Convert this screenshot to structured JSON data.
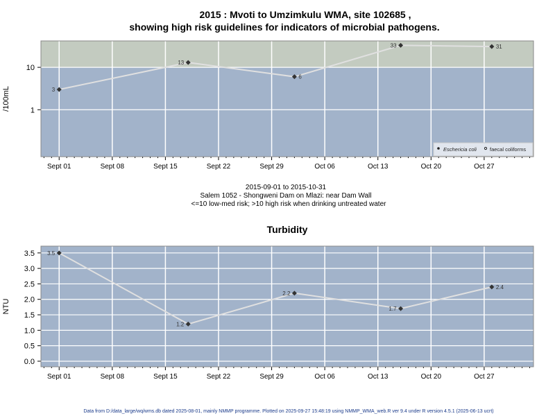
{
  "chart_data": [
    {
      "type": "line",
      "title_line1": "2015 : Mvoti to Umzimkulu WMA, site 102685 ,",
      "title_line2": "showing high risk guidelines for indicators of microbial pathogens.",
      "ylabel": "/100mL",
      "yscale": "log",
      "ylim": [
        0.078,
        42
      ],
      "yticks": [
        {
          "v": 1,
          "label": "1"
        },
        {
          "v": 10,
          "label": "10"
        }
      ],
      "xlim_days_from_sept01": [
        -2.4,
        62.5
      ],
      "xticks": [
        {
          "d": 0,
          "label": "Sept 01"
        },
        {
          "d": 7,
          "label": "Sept 08"
        },
        {
          "d": 14,
          "label": "Sept 15"
        },
        {
          "d": 21,
          "label": "Sept 22"
        },
        {
          "d": 28,
          "label": "Sept 29"
        },
        {
          "d": 35,
          "label": "Oct 06"
        },
        {
          "d": 42,
          "label": "Oct 13"
        },
        {
          "d": 49,
          "label": "Oct 20"
        },
        {
          "d": 56,
          "label": "Oct 27"
        }
      ],
      "high_risk_threshold": 10,
      "series": [
        {
          "name": "Eschericia coli",
          "points": [
            {
              "date": "2015-09-01",
              "d": 0,
              "y": 3,
              "label": "3",
              "side": "left"
            },
            {
              "date": "2015-09-18",
              "d": 17,
              "y": 13,
              "label": "13",
              "side": "left"
            },
            {
              "date": "2015-10-02",
              "d": 31,
              "y": 6,
              "label": "6",
              "side": "right"
            },
            {
              "date": "2015-10-16",
              "d": 45,
              "y": 33,
              "label": "33",
              "side": "left"
            },
            {
              "date": "2015-10-28",
              "d": 57,
              "y": 31,
              "label": "31",
              "side": "right"
            }
          ]
        }
      ],
      "legend": [
        {
          "label": "Eschericia coli",
          "marker": "filled"
        },
        {
          "label": "faecal coliforms",
          "marker": "open"
        }
      ],
      "legend_position": "bottom-right",
      "colors": {
        "low_band": "#a2b3ca",
        "high_band": "#c3cbc0",
        "line": "#e0e0e0",
        "point": "#333333"
      }
    },
    {
      "type": "line",
      "title": "Turbidity",
      "ylabel": "NTU",
      "ylim": [
        -0.18,
        3.72
      ],
      "yticks": [
        {
          "v": 0,
          "label": "0.0"
        },
        {
          "v": 0.5,
          "label": "0.5"
        },
        {
          "v": 1,
          "label": "1.0"
        },
        {
          "v": 1.5,
          "label": "1.5"
        },
        {
          "v": 2,
          "label": "2.0"
        },
        {
          "v": 2.5,
          "label": "2.5"
        },
        {
          "v": 3,
          "label": "3.0"
        },
        {
          "v": 3.5,
          "label": "3.5"
        }
      ],
      "xlim_days_from_sept01": [
        -2.4,
        62.5
      ],
      "xticks": [
        {
          "d": 0,
          "label": "Sept 01"
        },
        {
          "d": 7,
          "label": "Sept 08"
        },
        {
          "d": 14,
          "label": "Sept 15"
        },
        {
          "d": 21,
          "label": "Sept 22"
        },
        {
          "d": 28,
          "label": "Sept 29"
        },
        {
          "d": 35,
          "label": "Oct 06"
        },
        {
          "d": 42,
          "label": "Oct 13"
        },
        {
          "d": 49,
          "label": "Oct 20"
        },
        {
          "d": 56,
          "label": "Oct 27"
        }
      ],
      "series": [
        {
          "name": "Turbidity",
          "points": [
            {
              "date": "2015-09-01",
              "d": 0,
              "y": 3.5,
              "label": "3.5",
              "side": "left"
            },
            {
              "date": "2015-09-18",
              "d": 17,
              "y": 1.2,
              "label": "1.2",
              "side": "left"
            },
            {
              "date": "2015-10-02",
              "d": 31,
              "y": 2.2,
              "label": "2.2",
              "side": "left"
            },
            {
              "date": "2015-10-16",
              "d": 45,
              "y": 1.7,
              "label": "1.7",
              "side": "left"
            },
            {
              "date": "2015-10-28",
              "d": 57,
              "y": 2.4,
              "label": "2.4",
              "side": "right"
            }
          ]
        }
      ],
      "colors": {
        "band": "#a2b3ca",
        "line": "#e0e0e0",
        "point": "#333333"
      }
    }
  ],
  "subtitle": {
    "date_range": "2015-09-01 to 2015-10-31",
    "site": "Salem 1052 - Shongweni Dam on Mlazi: near Dam Wall",
    "risk_note": "<=10 low-med risk; >10 high risk when drinking untreated water"
  },
  "footer": "Data from D:/data_large/wq/wms.db dated 2025-08-01, mainly NMMP programme. Plotted on 2025-09-27 15:48:19 using NMMP_WMA_web.R ver 9.4 under R version 4.5.1 (2025-06-13 ucrt)"
}
